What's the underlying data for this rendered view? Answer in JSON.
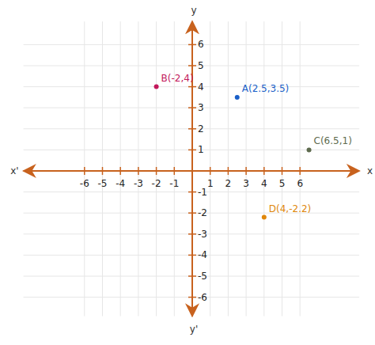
{
  "chart_data": {
    "type": "scatter",
    "x": [
      2.5,
      -2,
      6.5,
      4
    ],
    "values": [
      3.5,
      4,
      1,
      -2.2
    ],
    "annotations": [
      "A(2.5,3.5)",
      "B(-2,4)",
      "C(6.5,1)",
      "D(4,-2.2)"
    ],
    "colors": [
      "#1a5fc8",
      "#c2185b",
      "#5e6b4e",
      "#e0870a"
    ],
    "color": "#c8621e",
    "marker": "circle",
    "axis_labels": {
      "x": "x",
      "x_neg": "x'",
      "y": "y",
      "y_neg": "y'"
    },
    "xlim": [
      -9.4,
      9.3
    ],
    "ylim": [
      -6.9,
      7.1
    ],
    "xticks": [
      -6,
      -5,
      -4,
      -3,
      -2,
      -1,
      1,
      2,
      3,
      4,
      5,
      6
    ],
    "yticks": [
      -6,
      -5,
      -4,
      -3,
      -2,
      -1,
      1,
      2,
      3,
      4,
      5,
      6
    ],
    "grid": true
  }
}
